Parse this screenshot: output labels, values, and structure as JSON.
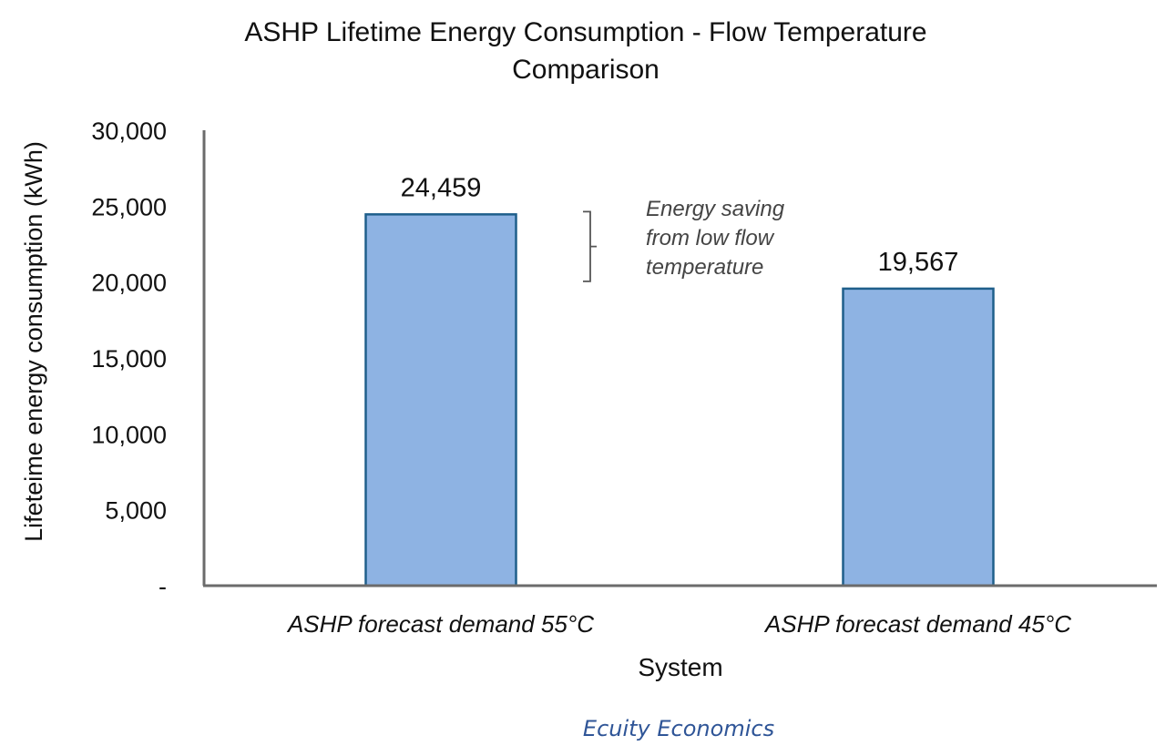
{
  "chart_data": {
    "type": "bar",
    "title_lines": [
      "ASHP Lifetime Energy Consumption - Flow Temperature",
      "Comparison"
    ],
    "xlabel": "System",
    "ylabel": "Lifeteime energy consumption (kWh)",
    "categories": [
      "ASHP forecast demand 55°C",
      "ASHP forecast demand 45°C"
    ],
    "values": [
      24459,
      19567
    ],
    "data_labels": [
      "24,459",
      "19,567"
    ],
    "ylim": [
      0,
      30000
    ],
    "yticks": [
      0,
      5000,
      10000,
      15000,
      20000,
      25000,
      30000
    ],
    "ytick_labels": [
      "-",
      "5,000",
      "10,000",
      "15,000",
      "20,000",
      "25,000",
      "30,000"
    ],
    "grid": false,
    "annotation": {
      "lines": [
        "Energy saving",
        "from low flow",
        "temperature"
      ],
      "range": [
        19567,
        24459
      ]
    },
    "colors": {
      "bar_fill": "#8eb3e3",
      "bar_stroke": "#1f5f8b",
      "axis": "#6b6b6b",
      "source": "#2f5597"
    }
  },
  "source": "Ecuity Economics"
}
